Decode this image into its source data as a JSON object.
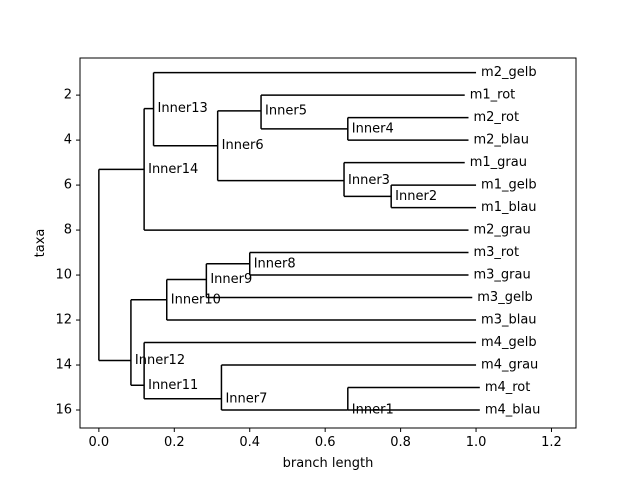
{
  "chart_data": {
    "type": "dendrogram",
    "xlabel": "branch length",
    "ylabel": "taxa",
    "xlim": [
      -0.05,
      1.265
    ],
    "ylim": [
      16.8,
      0.35
    ],
    "xticks": [
      0.0,
      0.2,
      0.4,
      0.6,
      0.8,
      1.0,
      1.2
    ],
    "xtick_labels": [
      "0.0",
      "0.2",
      "0.4",
      "0.6",
      "0.8",
      "1.0",
      "1.2"
    ],
    "yticks": [
      2,
      4,
      6,
      8,
      10,
      12,
      14,
      16
    ],
    "ytick_labels": [
      "2",
      "4",
      "6",
      "8",
      "10",
      "12",
      "14",
      "16"
    ],
    "grid": false,
    "line_color": "#000000",
    "leaves": [
      {
        "name": "m2_gelb",
        "x": 1.0,
        "y": 1
      },
      {
        "name": "m1_rot",
        "x": 0.97,
        "y": 2
      },
      {
        "name": "m2_rot",
        "x": 0.98,
        "y": 3
      },
      {
        "name": "m2_blau",
        "x": 0.98,
        "y": 4
      },
      {
        "name": "m1_grau",
        "x": 0.97,
        "y": 5
      },
      {
        "name": "m1_gelb",
        "x": 1.0,
        "y": 6
      },
      {
        "name": "m1_blau",
        "x": 1.0,
        "y": 7
      },
      {
        "name": "m2_grau",
        "x": 0.98,
        "y": 8
      },
      {
        "name": "m3_rot",
        "x": 0.98,
        "y": 9
      },
      {
        "name": "m3_grau",
        "x": 0.98,
        "y": 10
      },
      {
        "name": "m3_gelb",
        "x": 0.99,
        "y": 11
      },
      {
        "name": "m3_blau",
        "x": 1.0,
        "y": 12
      },
      {
        "name": "m4_gelb",
        "x": 1.0,
        "y": 13
      },
      {
        "name": "m4_grau",
        "x": 1.0,
        "y": 14
      },
      {
        "name": "m4_rot",
        "x": 1.01,
        "y": 15
      },
      {
        "name": "m4_blau",
        "x": 1.01,
        "y": 16
      }
    ],
    "internal_nodes": [
      {
        "name": "",
        "x": 0.0,
        "y": 12.5,
        "children": [
          "Inner14",
          "Inner12"
        ]
      },
      {
        "name": "Inner14",
        "x": 0.12,
        "y": 5.3,
        "children": [
          "Inner13",
          "m2_grau"
        ]
      },
      {
        "name": "Inner13",
        "x": 0.145,
        "y": 2.6,
        "children": [
          "m2_gelb",
          "Inner6"
        ]
      },
      {
        "name": "Inner6",
        "x": 0.315,
        "y": 4.25,
        "children": [
          "Inner5",
          "Inner3"
        ]
      },
      {
        "name": "Inner5",
        "x": 0.43,
        "y": 2.7,
        "children": [
          "m1_rot",
          "Inner4"
        ]
      },
      {
        "name": "Inner4",
        "x": 0.66,
        "y": 3.5,
        "children": [
          "m2_rot",
          "m2_blau"
        ]
      },
      {
        "name": "Inner3",
        "x": 0.65,
        "y": 5.8,
        "children": [
          "m1_grau",
          "Inner2"
        ]
      },
      {
        "name": "Inner2",
        "x": 0.775,
        "y": 6.5,
        "children": [
          "m1_gelb",
          "m1_blau"
        ]
      },
      {
        "name": "Inner12",
        "x": 0.085,
        "y": 13.8,
        "children": [
          "Inner10",
          "Inner11"
        ]
      },
      {
        "name": "Inner10",
        "x": 0.18,
        "y": 11.1,
        "children": [
          "Inner9",
          "m3_blau"
        ]
      },
      {
        "name": "Inner9",
        "x": 0.285,
        "y": 10.2,
        "children": [
          "Inner8",
          "m3_gelb"
        ]
      },
      {
        "name": "Inner8",
        "x": 0.4,
        "y": 9.5,
        "children": [
          "m3_rot",
          "m3_grau"
        ]
      },
      {
        "name": "Inner11",
        "x": 0.12,
        "y": 14.9,
        "children": [
          "m4_gelb",
          "Inner7"
        ]
      },
      {
        "name": "Inner7",
        "x": 0.325,
        "y": 15.5,
        "children": [
          "m4_grau",
          "Inner1"
        ]
      },
      {
        "name": "Inner1",
        "x": 0.66,
        "y": 16.0,
        "children": [
          "m4_rot",
          "m4_blau"
        ]
      }
    ]
  }
}
